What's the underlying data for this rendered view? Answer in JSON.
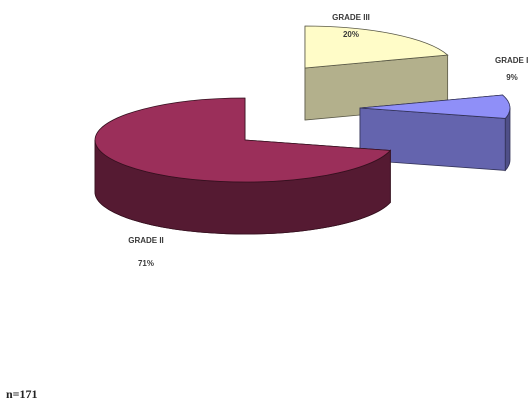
{
  "chart_data": {
    "type": "pie",
    "style": "3d-exploded",
    "slices": [
      {
        "label": "GRADE II",
        "value": 71,
        "value_label": "71%",
        "color": "#9b2f5a"
      },
      {
        "label": "GRADE III",
        "value": 20,
        "value_label": "20%",
        "color": "#fffcc8"
      },
      {
        "label": "GRADE I",
        "value": 9,
        "value_label": "9%",
        "color": "#8f8ff8"
      }
    ]
  },
  "footnote": {
    "sample_size": "n=171"
  }
}
